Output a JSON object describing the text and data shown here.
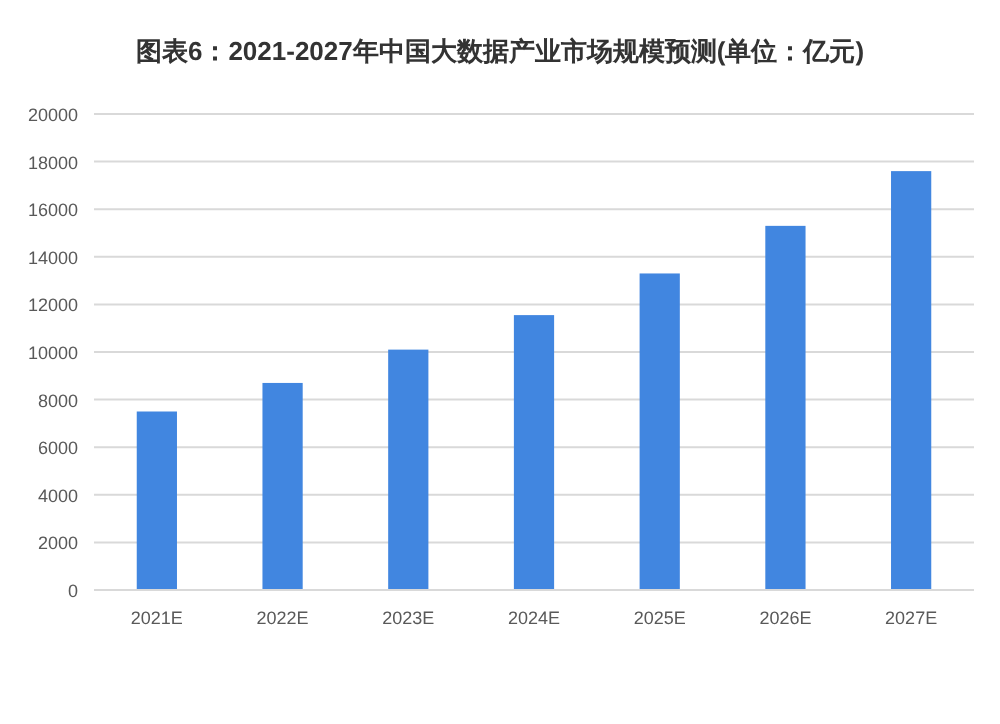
{
  "chart_data": {
    "type": "bar",
    "title": "图表6：2021-2027年中国大数据产业市场规模预测(单位：亿元)",
    "categories": [
      "2021E",
      "2022E",
      "2023E",
      "2024E",
      "2025E",
      "2026E",
      "2027E"
    ],
    "values": [
      7500,
      8700,
      10100,
      11550,
      13300,
      15300,
      17600
    ],
    "color": "#4186e0",
    "ylim": [
      0,
      20000
    ],
    "yticks": [
      0,
      2000,
      4000,
      6000,
      8000,
      10000,
      12000,
      14000,
      16000,
      18000,
      20000
    ],
    "grid": "y"
  }
}
